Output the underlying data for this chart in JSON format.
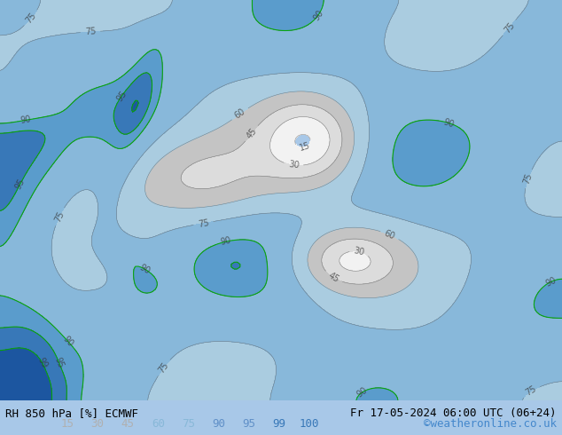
{
  "title_left": "RH 850 hPa [%] ECMWF",
  "title_right": "Fr 17-05-2024 06:00 UTC (06+24)",
  "credit": "©weatheronline.co.uk",
  "colorbar_levels": [
    15,
    30,
    45,
    60,
    75,
    90,
    95,
    99,
    100
  ],
  "colorbar_colors": [
    "#e8e8e8",
    "#d0d0d0",
    "#b8b8b8",
    "#a0c8e8",
    "#80b8e0",
    "#60a0d8",
    "#4088c8",
    "#2060b0",
    "#1040a0"
  ],
  "figsize": [
    6.34,
    4.9
  ],
  "dpi": 100,
  "bg_color": "#a8c8e8",
  "bottom_bg": "#dce8f0",
  "label_fontsize": 9,
  "credit_color": "#4488cc",
  "title_fontsize": 9,
  "seed": 42
}
